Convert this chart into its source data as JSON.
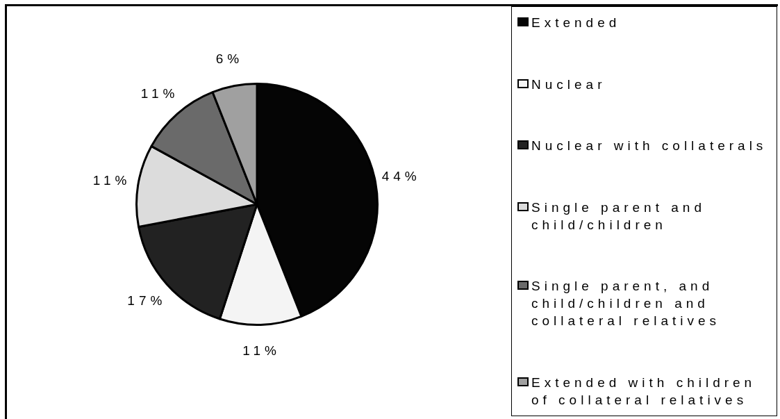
{
  "chart_data": {
    "type": "pie",
    "categories": [
      "Extended",
      "Nuclear",
      "Nuclear with collaterals",
      "Single parent and child/children",
      "Single parent, and child/children and collateral relatives",
      "Extended with children of collateral relatives"
    ],
    "values": [
      44,
      11,
      17,
      11,
      11,
      6
    ],
    "colors": [
      "#050505",
      "#f4f4f4",
      "#222222",
      "#dcdcdc",
      "#6a6a6a",
      "#a0a0a0"
    ],
    "value_labels": [
      "44%",
      "11%",
      "17%",
      "11%",
      "11%",
      "6%"
    ],
    "legend": "right"
  }
}
